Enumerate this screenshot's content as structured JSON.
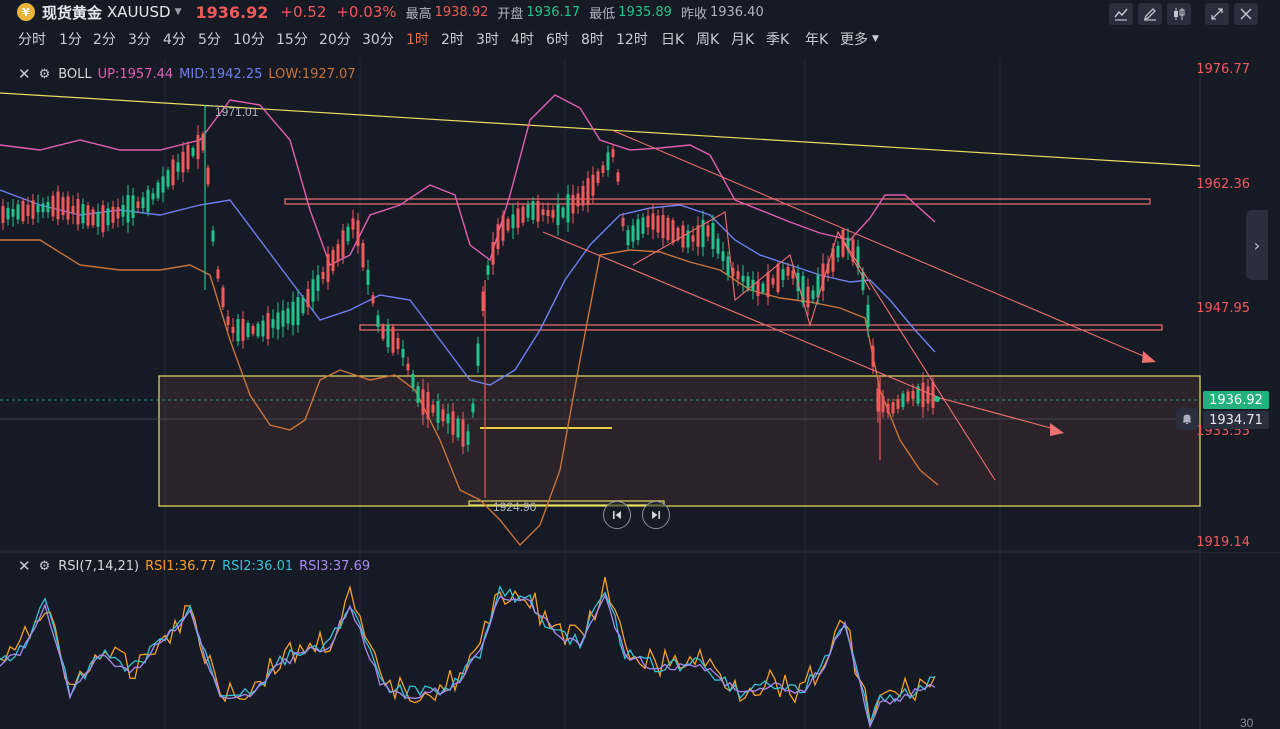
{
  "header": {
    "coin_glyph": "¥",
    "name": "现货黄金",
    "symbol": "XAUUSD",
    "price": "1936.92",
    "change": "+0.52",
    "change_pct": "+0.03%",
    "high_label": "最高",
    "high": "1938.92",
    "open_label": "开盘",
    "open": "1936.17",
    "low_label": "最低",
    "low": "1935.89",
    "prev_label": "昨收",
    "prev": "1936.40"
  },
  "timeframes": [
    "分时",
    "1分",
    "2分",
    "3分",
    "4分",
    "5分",
    "10分",
    "15分",
    "20分",
    "30分",
    "1时",
    "2时",
    "3时",
    "4时",
    "6时",
    "8时",
    "12时",
    "日K",
    "周K",
    "月K",
    "季K",
    "年K",
    "更多"
  ],
  "active_timeframe": "1时",
  "boll": {
    "name": "BOLL",
    "up_label": "UP:1957.44",
    "mid_label": "MID:1942.25",
    "low_label": "LOW:1927.07",
    "up_color": "#e15fb0",
    "mid_color": "#6f7ff0",
    "low_color": "#c8743a"
  },
  "rsi": {
    "name": "RSI(7,14,21)",
    "rsi1_label": "RSI1:36.77",
    "rsi2_label": "RSI2:36.01",
    "rsi3_label": "RSI3:37.69",
    "rsi1_color": "#f5a02a",
    "rsi2_color": "#36c2d6",
    "rsi3_color": "#a98af0",
    "axis_tick": "30"
  },
  "price_axis": [
    "1976.77",
    "1962.36",
    "1947.95",
    "1933.55",
    "1919.14"
  ],
  "current_price_tag": "1936.92",
  "crosshair_price_tag": "1934.71",
  "annotations": {
    "high_marker": "1971.01",
    "low_marker": "1924.90"
  },
  "colors": {
    "up": "#21c48a",
    "down": "#f05a5a",
    "trendline_yellow": "#e8e060",
    "channel_red": "#f07070"
  }
}
